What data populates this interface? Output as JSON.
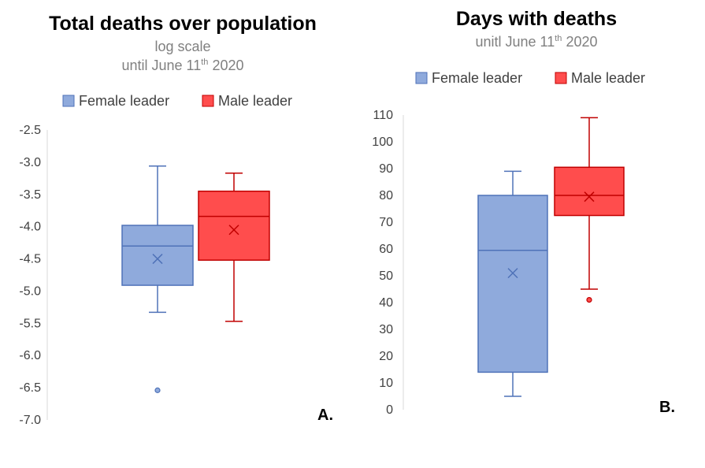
{
  "chart_data": [
    {
      "type": "box",
      "title": "Total deaths over population",
      "subtitle_line1": "log scale",
      "subtitle_line2_pre": "until June 11",
      "subtitle_line2_sup": "th",
      "subtitle_line2_post": " 2020",
      "panel_label": "A.",
      "ylim": [
        -7.0,
        -2.5
      ],
      "yticks": [
        "-2.5",
        "-3.0",
        "-3.5",
        "-4.0",
        "-4.5",
        "-5.0",
        "-5.5",
        "-6.0",
        "-6.5",
        "-7.0"
      ],
      "ytick_values": [
        -2.5,
        -3.0,
        -3.5,
        -4.0,
        -4.5,
        -5.0,
        -5.5,
        -6.0,
        -6.5,
        -7.0
      ],
      "grid": false,
      "legend_position": "top",
      "series": [
        {
          "name": "Female leader",
          "color": "#8faadc",
          "stroke": "#4f72b8",
          "whisker_low": -5.33,
          "q1": -4.91,
          "median": -4.3,
          "q3": -3.98,
          "whisker_high": -3.06,
          "mean": -4.5,
          "outliers": [
            -6.54
          ]
        },
        {
          "name": "Male leader",
          "color": "#ff4d4d",
          "stroke": "#c00000",
          "whisker_low": -5.47,
          "q1": -4.52,
          "median": -3.84,
          "q3": -3.45,
          "whisker_high": -3.17,
          "mean": -4.05,
          "outliers": []
        }
      ]
    },
    {
      "type": "box",
      "title": "Days with deaths",
      "subtitle_line1_pre": "unitl June 11",
      "subtitle_line1_sup": "th",
      "subtitle_line1_post": " 2020",
      "panel_label": "B.",
      "ylim": [
        0,
        110
      ],
      "yticks": [
        "110",
        "100",
        "90",
        "80",
        "70",
        "60",
        "50",
        "40",
        "30",
        "20",
        "10",
        "0"
      ],
      "ytick_values": [
        110,
        100,
        90,
        80,
        70,
        60,
        50,
        40,
        30,
        20,
        10,
        0
      ],
      "grid": false,
      "legend_position": "top",
      "series": [
        {
          "name": "Female leader",
          "color": "#8faadc",
          "stroke": "#4f72b8",
          "whisker_low": 5,
          "q1": 14,
          "median": 59.5,
          "q3": 80,
          "whisker_high": 89,
          "mean": 51,
          "outliers": []
        },
        {
          "name": "Male leader",
          "color": "#ff4d4d",
          "stroke": "#c00000",
          "whisker_low": 45,
          "q1": 72.5,
          "median": 80,
          "q3": 90.5,
          "whisker_high": 109,
          "mean": 79.5,
          "outliers": [
            41
          ]
        }
      ]
    }
  ]
}
